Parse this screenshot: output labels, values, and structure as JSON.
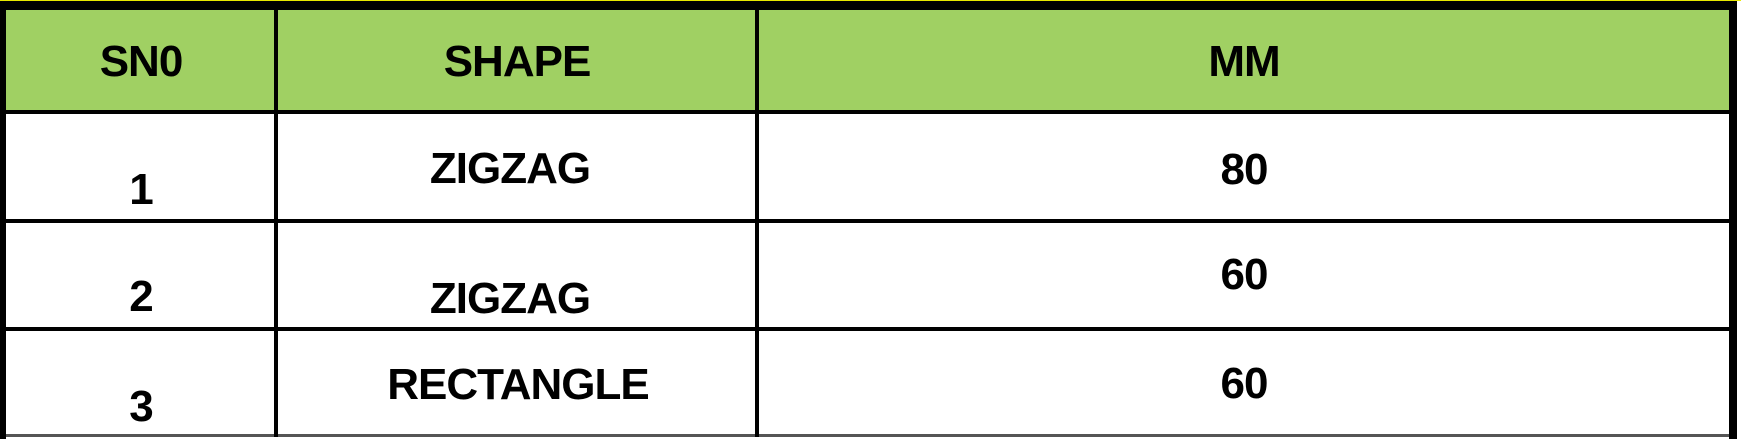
{
  "table": {
    "header_color": "#a0d063",
    "columns": [
      "SN0",
      "SHAPE",
      "MM"
    ],
    "rows": [
      [
        "1",
        "ZIGZAG",
        "80"
      ],
      [
        "2",
        "ZIGZAG",
        "60"
      ],
      [
        "3",
        "RECTANGLE",
        "60"
      ]
    ]
  }
}
